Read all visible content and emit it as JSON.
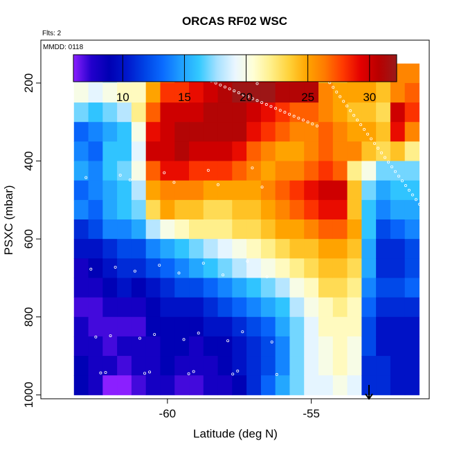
{
  "title": "ORCAS RF02 WSC",
  "flights_note": "Flts: 2",
  "date_note": "MMDD: 0118",
  "chart_data": {
    "type": "heatmap",
    "xlabel": "Latitude (deg N)",
    "ylabel": "PSXC (mbar)",
    "xlim": [
      -64.4,
      -50.9
    ],
    "ylim": [
      1010,
      90
    ],
    "x_ticks": [
      -60,
      -55
    ],
    "y_ticks": [
      200,
      400,
      600,
      800,
      1000
    ],
    "grid": false,
    "colorbar": {
      "min": 6,
      "max": 32.2,
      "ticks": [
        10,
        15,
        20,
        25,
        30
      ],
      "colors": [
        "#8b1fff",
        "#2200cc",
        "#0000b3",
        "#0018cc",
        "#0044e6",
        "#0a6cff",
        "#1f9fff",
        "#33c9ff",
        "#a6e1ff",
        "#eaf6ff",
        "#ffffd6",
        "#ffef8a",
        "#ffd23a",
        "#ffa500",
        "#ff7a00",
        "#ff3a00",
        "#e30000",
        "#b80000",
        "#991a1a"
      ]
    },
    "grid_cells": {
      "x_range": [
        -63.2,
        -51.2
      ],
      "p_levels": [
        175,
        225,
        275,
        325,
        375,
        425,
        475,
        525,
        575,
        625,
        675,
        725,
        775,
        825,
        875,
        925,
        975
      ],
      "profile_x": [
        -63.0,
        -62.5,
        -62.0,
        -61.5,
        -61.0,
        -60.5,
        -60.0,
        -59.5,
        -59.0,
        -58.5,
        -58.0,
        -57.5,
        -57.0,
        -56.5,
        -56.0,
        -55.5,
        -55.0,
        -54.5,
        -54.0,
        -53.5,
        -53.0,
        -52.5,
        -52.0,
        -51.5
      ],
      "wsc_profiles": [
        [
          19,
          20,
          17,
          13,
          14,
          15,
          13,
          14,
          11,
          10,
          8,
          8,
          7,
          8,
          8,
          9,
          9
        ],
        [
          19,
          19,
          16,
          14,
          13,
          14,
          14,
          13,
          12,
          10,
          9,
          8,
          7,
          7,
          8,
          8,
          8
        ],
        [
          18,
          20,
          17,
          15,
          16,
          16,
          15,
          15,
          14,
          11,
          10,
          9,
          8,
          7,
          7,
          8,
          6
        ],
        [
          19,
          21,
          18,
          16,
          16,
          17,
          16,
          16,
          14,
          12,
          11,
          10,
          8,
          7,
          8,
          7,
          6
        ],
        [
          20,
          21,
          22,
          20,
          19,
          20,
          18,
          17,
          15,
          12,
          11,
          9,
          8,
          7,
          8,
          8,
          7
        ],
        [
          24,
          25,
          27,
          29,
          30,
          27,
          25,
          23,
          18,
          14,
          12,
          10,
          9,
          9,
          8,
          8,
          8
        ],
        [
          27,
          28,
          30,
          30,
          30,
          29,
          26,
          25,
          20,
          15,
          13,
          11,
          10,
          9,
          9,
          9,
          8
        ],
        [
          28,
          28,
          30,
          31,
          31,
          29,
          26,
          24,
          21,
          16,
          14,
          12,
          10,
          9,
          9,
          8,
          7
        ],
        [
          29,
          29,
          30,
          31,
          30,
          28,
          26,
          24,
          22,
          17,
          15,
          12,
          10,
          9,
          8,
          8,
          7
        ],
        [
          30,
          30,
          31,
          31,
          30,
          28,
          25,
          23,
          22,
          18,
          16,
          13,
          11,
          10,
          9,
          8,
          8
        ],
        [
          31,
          31,
          31,
          31,
          30,
          28,
          25,
          23,
          22,
          19,
          17,
          14,
          12,
          10,
          9,
          9,
          8
        ],
        [
          31,
          32,
          31,
          31,
          29,
          27,
          25,
          24,
          23,
          20,
          18,
          15,
          13,
          11,
          10,
          10,
          9
        ],
        [
          31,
          32,
          30,
          29,
          27,
          26,
          25,
          24,
          23,
          21,
          19,
          16,
          14,
          12,
          11,
          11,
          11
        ],
        [
          31,
          32,
          29,
          28,
          26,
          25,
          26,
          25,
          24,
          22,
          20,
          17,
          15,
          13,
          12,
          12,
          13
        ],
        [
          30,
          31,
          28,
          27,
          25,
          26,
          27,
          26,
          25,
          23,
          21,
          18,
          16,
          15,
          14,
          14,
          15
        ],
        [
          30,
          31,
          27,
          26,
          25,
          26,
          28,
          27,
          25,
          24,
          22,
          20,
          18,
          17,
          17,
          17,
          17
        ],
        [
          30,
          31,
          27,
          26,
          26,
          27,
          29,
          28,
          26,
          24,
          23,
          21,
          20,
          19,
          19,
          19,
          19
        ],
        [
          24,
          26,
          26,
          27,
          27,
          28,
          30,
          29,
          27,
          25,
          24,
          23,
          21,
          21,
          20,
          20,
          19
        ],
        [
          24,
          25,
          25,
          26,
          26,
          27,
          30,
          29,
          27,
          25,
          24,
          23,
          22,
          21,
          21,
          21,
          20
        ],
        [
          25,
          25,
          24,
          25,
          26,
          22,
          24,
          24,
          25,
          24,
          23,
          22,
          21,
          21,
          20,
          20,
          19
        ],
        [
          25,
          25,
          24,
          25,
          24,
          20,
          17,
          16,
          16,
          15,
          15,
          14,
          13,
          12,
          12,
          11,
          11
        ],
        [
          24,
          24,
          23,
          24,
          23,
          17,
          15,
          14,
          12,
          11,
          11,
          12,
          11,
          10,
          10,
          11,
          11
        ],
        [
          26,
          26,
          30,
          29,
          24,
          17,
          16,
          15,
          13,
          11,
          11,
          12,
          11,
          10,
          10,
          10,
          10
        ],
        [
          26,
          27,
          28,
          26,
          22,
          17,
          16,
          15,
          14,
          12,
          12,
          13,
          11,
          10,
          10,
          10,
          10
        ]
      ]
    }
  }
}
